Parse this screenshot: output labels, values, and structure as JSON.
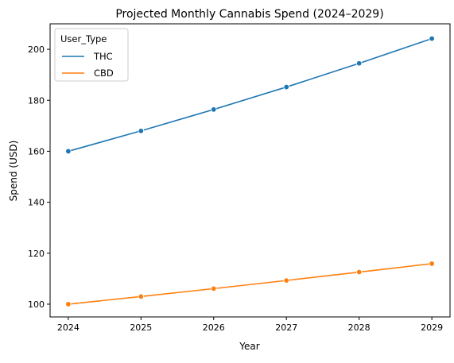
{
  "chart_data": {
    "type": "line",
    "title": "Projected Monthly Cannabis Spend (2024–2029)",
    "xlabel": "Year",
    "ylabel": "Spend (USD)",
    "x": [
      2024,
      2025,
      2026,
      2027,
      2028,
      2029
    ],
    "xlim": [
      2023.75,
      2029.25
    ],
    "ylim": [
      95,
      210
    ],
    "yticks": [
      100,
      120,
      140,
      160,
      180,
      200
    ],
    "grid": false,
    "legend": {
      "title": "User_Type",
      "placement": "top-left"
    },
    "series": [
      {
        "name": "THC",
        "color": "#1f77b4",
        "values": [
          160.0,
          168.0,
          176.4,
          185.2,
          194.5,
          204.2
        ]
      },
      {
        "name": "CBD",
        "color": "#ff7f0e",
        "values": [
          100.0,
          103.0,
          106.1,
          109.3,
          112.6,
          115.9
        ]
      }
    ]
  }
}
